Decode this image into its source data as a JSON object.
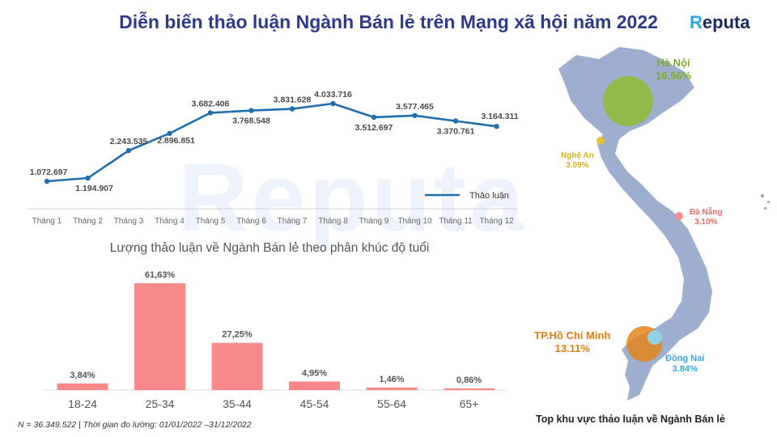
{
  "title": "Diễn biến thảo luận Ngành Bán lẻ trên Mạng xã hội năm 2022",
  "logo": {
    "prefix": "R",
    "rest": "eputa"
  },
  "watermark": "Reputa",
  "footnote": "N = 36.349.522 | Thời gian đo lường: 01/01/2022 –31/12/2022",
  "colors": {
    "title": "#2e3a8c",
    "line": "#1f6fae",
    "bar": "#f8898a",
    "map": "#9eaecf"
  },
  "chart_data": [
    {
      "type": "line",
      "categories": [
        "Tháng 1",
        "Tháng 2",
        "Tháng 3",
        "Tháng 4",
        "Tháng 5",
        "Tháng 6",
        "Tháng 7",
        "Tháng 8",
        "Tháng 9",
        "Tháng 10",
        "Tháng 11",
        "Tháng 12"
      ],
      "series": [
        {
          "name": "Thảo luận",
          "values": [
            1072697,
            1194907,
            2243535,
            2896851,
            3682406,
            3768548,
            3831628,
            4033716,
            3512697,
            3577465,
            3370761,
            3164311
          ]
        }
      ],
      "value_labels": [
        "1.072.697",
        "1.194.907",
        "2.243.535",
        "2.896.851",
        "3.682.406",
        "3.768.548",
        "3.831.628",
        "4.033.716",
        "3.512.697",
        "3.577.465",
        "3.370.761",
        "3.164.311"
      ],
      "legend": "inside-right"
    },
    {
      "type": "bar",
      "title": "Lượng thảo luận về Ngành Bán lẻ theo phân khúc độ tuổi",
      "categories": [
        "18-24",
        "25-34",
        "35-44",
        "45-54",
        "55-64",
        "65+"
      ],
      "values": [
        3.84,
        61.63,
        27.25,
        4.95,
        1.46,
        0.86
      ],
      "value_labels": [
        "3,84%",
        "61,63%",
        "27,25%",
        "4,95%",
        "1,46%",
        "0,86%"
      ]
    }
  ],
  "map": {
    "caption": "Top khu vực thảo luận về Ngành Bán lẻ",
    "regions": [
      {
        "name": "Hà Nội",
        "share": "16.56%",
        "value": 16.56,
        "color": "#8dbd3c",
        "label_color": "#7aab2a"
      },
      {
        "name": "Nghệ An",
        "share": "3.09%",
        "value": 3.09,
        "color": "#e6c22a",
        "label_color": "#d8b21a"
      },
      {
        "name": "Đà Nẵng",
        "share": "3.10%",
        "value": 3.1,
        "color": "#f28b8b",
        "label_color": "#e86b6b"
      },
      {
        "name": "TP.Hồ Chí Minh",
        "share": "13.11%",
        "value": 13.11,
        "color": "#e5841a",
        "label_color": "#e07d10"
      },
      {
        "name": "Đồng Nai",
        "share": "3.84%",
        "value": 3.84,
        "color": "#8fd4ec",
        "label_color": "#3aa8d8"
      }
    ]
  }
}
